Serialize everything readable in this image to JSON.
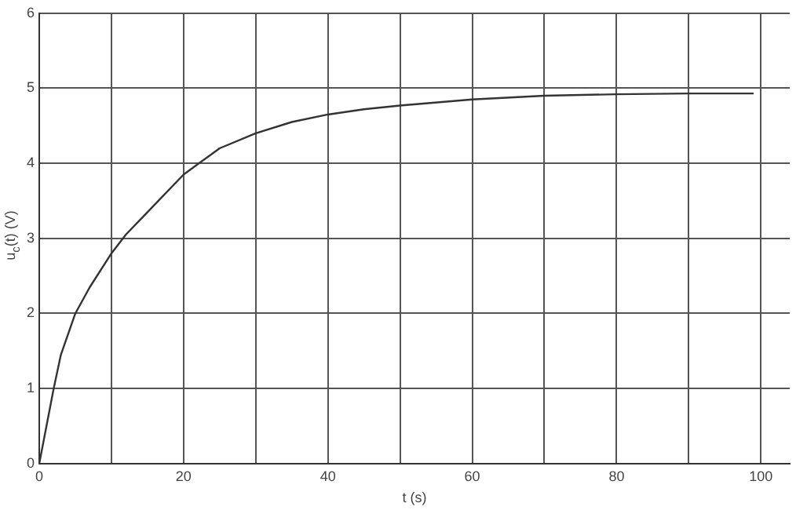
{
  "chart_data": {
    "type": "line",
    "xlabel": "t (s)",
    "ylabel": "u$_{c}$(t) (V)",
    "series": [
      {
        "color": "#333333",
        "x": [
          0,
          1,
          2,
          3,
          5,
          7,
          10,
          12,
          15,
          20,
          25,
          30,
          35,
          40,
          45,
          50,
          60,
          70,
          80,
          90,
          99
        ],
        "values": [
          0,
          0.5,
          1,
          1.45,
          2.0,
          2.35,
          2.8,
          3.05,
          3.35,
          3.85,
          4.2,
          4.4,
          4.55,
          4.65,
          4.72,
          4.77,
          4.85,
          4.9,
          4.92,
          4.93,
          4.93
        ]
      }
    ],
    "xlim": [
      0,
      104
    ],
    "xticks": [
      0,
      {
        "value": 10,
        "label": null
      },
      20,
      {
        "value": 30,
        "label": null
      },
      40,
      {
        "value": 50,
        "label": null
      },
      60,
      {
        "value": 70,
        "label": null
      },
      80,
      {
        "value": 90,
        "label": null
      },
      100
    ],
    "ylim": [
      0,
      6
    ],
    "yticks": [
      0,
      1,
      2,
      3,
      4,
      5,
      6
    ],
    "grid": true,
    "marker": "none",
    "line_style": "solid",
    "legend": false
  }
}
